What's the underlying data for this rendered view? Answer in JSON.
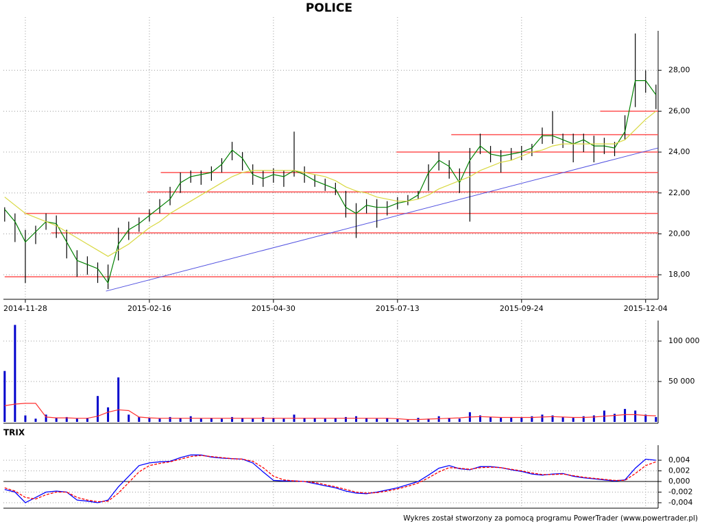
{
  "chart_data": [
    {
      "type": "stock",
      "title": "POLICE",
      "categories": [
        null,
        null,
        "2014-11-28",
        null,
        null,
        null,
        null,
        null,
        null,
        null,
        null,
        null,
        null,
        null,
        "2015-02-16",
        null,
        null,
        null,
        null,
        null,
        null,
        null,
        null,
        null,
        null,
        null,
        "2015-04-30",
        null,
        null,
        null,
        null,
        null,
        null,
        null,
        null,
        null,
        null,
        null,
        "2015-07-13",
        null,
        null,
        null,
        null,
        null,
        null,
        null,
        null,
        null,
        null,
        null,
        "2015-09-24",
        null,
        null,
        null,
        null,
        null,
        null,
        null,
        null,
        null,
        null,
        null,
        "2015-12-04",
        null
      ],
      "high": [
        21.3,
        21.0,
        20.2,
        20.4,
        21.0,
        20.9,
        20.2,
        19.2,
        18.9,
        18.6,
        18.5,
        20.3,
        20.6,
        20.8,
        21.2,
        21.7,
        22.3,
        23.0,
        23.1,
        23.1,
        23.3,
        23.7,
        24.5,
        24.0,
        23.4,
        23.1,
        23.2,
        23.1,
        25.0,
        23.3,
        22.9,
        22.7,
        22.5,
        22.1,
        21.5,
        21.7,
        21.7,
        21.6,
        21.8,
        21.9,
        22.1,
        23.4,
        24.0,
        23.6,
        23.2,
        24.2,
        24.9,
        24.3,
        24.1,
        24.2,
        24.3,
        24.4,
        25.2,
        26.0,
        24.9,
        24.9,
        24.9,
        24.8,
        24.7,
        24.5,
        25.8,
        29.8,
        28.0,
        27.3
      ],
      "low": [
        20.6,
        19.6,
        17.6,
        19.5,
        20.2,
        19.8,
        18.8,
        17.9,
        18.0,
        17.6,
        17.3,
        18.7,
        19.7,
        20.1,
        20.6,
        21.0,
        21.4,
        22.0,
        22.5,
        22.4,
        22.6,
        23.0,
        23.6,
        23.1,
        22.4,
        22.3,
        22.5,
        22.3,
        22.8,
        22.5,
        22.3,
        22.1,
        21.9,
        20.8,
        19.8,
        21.0,
        20.3,
        20.9,
        21.2,
        21.4,
        21.7,
        22.1,
        23.1,
        22.7,
        22.0,
        20.6,
        23.9,
        23.5,
        23.0,
        23.6,
        23.6,
        23.8,
        24.4,
        24.4,
        24.2,
        23.5,
        24.0,
        23.5,
        23.9,
        23.8,
        24.6,
        26.2,
        26.9,
        26.1
      ],
      "series": [
        {
          "color": "#008000",
          "values": [
            21.2,
            20.6,
            19.6,
            20.1,
            20.6,
            20.5,
            19.6,
            18.7,
            18.5,
            18.3,
            17.6,
            19.5,
            20.2,
            20.5,
            20.9,
            21.3,
            21.7,
            22.5,
            22.8,
            22.9,
            23.0,
            23.4,
            24.1,
            23.7,
            22.9,
            22.7,
            22.9,
            22.8,
            23.1,
            22.9,
            22.6,
            22.4,
            22.2,
            21.3,
            21.0,
            21.4,
            21.3,
            21.3,
            21.5,
            21.6,
            21.9,
            23.0,
            23.6,
            23.3,
            22.5,
            23.6,
            24.3,
            23.9,
            23.8,
            23.9,
            24.0,
            24.2,
            24.8,
            24.8,
            24.6,
            24.4,
            24.6,
            24.3,
            24.3,
            24.2,
            25.0,
            27.5,
            27.5,
            26.8
          ]
        },
        {
          "color": "#d8d840",
          "values": [
            21.8,
            21.4,
            21.0,
            20.8,
            20.6,
            20.4,
            20.1,
            19.8,
            19.5,
            19.2,
            18.9,
            19.2,
            19.5,
            19.9,
            20.3,
            20.6,
            21.0,
            21.3,
            21.6,
            21.9,
            22.2,
            22.5,
            22.8,
            23.0,
            23.1,
            23.1,
            23.1,
            23.1,
            23.1,
            23.0,
            22.9,
            22.8,
            22.6,
            22.3,
            22.1,
            22.0,
            21.8,
            21.7,
            21.6,
            21.6,
            21.7,
            21.9,
            22.2,
            22.4,
            22.6,
            22.8,
            23.1,
            23.3,
            23.5,
            23.6,
            23.8,
            24.0,
            24.1,
            24.3,
            24.4,
            24.4,
            24.4,
            24.4,
            24.4,
            24.4,
            24.6,
            25.1,
            25.6,
            26.0
          ]
        }
      ],
      "hlines": {
        "color": "#ff5050",
        "levels": [
          {
            "value": 17.9,
            "from": 0
          },
          {
            "value": 20.05,
            "from": 4.5
          },
          {
            "value": 21.0,
            "from": 1.9
          },
          {
            "value": 22.05,
            "from": 13.8
          },
          {
            "value": 23.0,
            "from": 15.1
          },
          {
            "value": 24.0,
            "from": 37.9
          },
          {
            "value": 24.85,
            "from": 43.2
          },
          {
            "value": 26.0,
            "from": 57.6
          }
        ]
      },
      "trendline": {
        "color": "#5050e0",
        "from": [
          9.8,
          17.2
        ],
        "to": [
          63.2,
          24.2
        ]
      },
      "ylim": [
        16.8,
        30.6
      ],
      "yticks": [
        {
          "value": 18,
          "label": "18,00"
        },
        {
          "value": 20,
          "label": "20,00"
        },
        {
          "value": 22,
          "label": "22,00"
        },
        {
          "value": 24,
          "label": "24,00"
        },
        {
          "value": 26,
          "label": "26,00"
        },
        {
          "value": 28,
          "label": "28,00"
        }
      ],
      "grid": true
    },
    {
      "type": "bar",
      "values": [
        63000,
        120000,
        8000,
        4000,
        9000,
        5000,
        6000,
        4000,
        5000,
        32000,
        18000,
        55000,
        9000,
        6000,
        5000,
        4000,
        6000,
        5000,
        7000,
        4000,
        5000,
        4000,
        6000,
        5000,
        4000,
        6000,
        5000,
        4000,
        9000,
        5000,
        5000,
        4000,
        5000,
        6000,
        7000,
        5000,
        4000,
        5000,
        4000,
        3000,
        5000,
        4000,
        7000,
        5000,
        4000,
        12000,
        8000,
        6000,
        5000,
        6000,
        6000,
        7000,
        9000,
        8000,
        6000,
        5000,
        7000,
        8000,
        14000,
        10000,
        16000,
        14000,
        9000,
        6000
      ],
      "color": "#0000cc",
      "series": [
        {
          "color": "#ff3030",
          "values": [
            20000,
            22000,
            23000,
            23000,
            6000,
            5000,
            5000,
            4500,
            4500,
            7000,
            12000,
            15000,
            14000,
            6000,
            5000,
            4500,
            4500,
            4500,
            4500,
            4500,
            4500,
            4500,
            4500,
            4500,
            4500,
            4500,
            4500,
            4500,
            4500,
            4500,
            4500,
            4500,
            4500,
            4500,
            4500,
            4500,
            4500,
            4500,
            4000,
            3000,
            3000,
            3500,
            4000,
            4500,
            5000,
            6000,
            6500,
            6000,
            5500,
            5500,
            5500,
            5500,
            6000,
            6500,
            6000,
            5500,
            5500,
            6000,
            7000,
            8000,
            9000,
            9000,
            8000,
            7500
          ]
        }
      ],
      "ylim": [
        0,
        125000
      ],
      "yticks": [
        {
          "value": 50000,
          "label": "50 000"
        },
        {
          "value": 100000,
          "label": "100 000"
        }
      ],
      "grid": true
    },
    {
      "type": "line",
      "title": "TRIX",
      "series": [
        {
          "color": "#0000ff",
          "values": [
            -0.0015,
            -0.002,
            -0.004,
            -0.003,
            -0.002,
            -0.0018,
            -0.002,
            -0.0035,
            -0.0037,
            -0.004,
            -0.0035,
            -0.001,
            0.001,
            0.003,
            0.0035,
            0.0037,
            0.0038,
            0.0045,
            0.005,
            0.005,
            0.0046,
            0.0044,
            0.0043,
            0.0042,
            0.0035,
            0.0018,
            0.0002,
            0.0001,
            0.0001,
            0.0,
            -0.0004,
            -0.0008,
            -0.0012,
            -0.0018,
            -0.0022,
            -0.0023,
            -0.002,
            -0.0016,
            -0.0012,
            -0.0006,
            0.0,
            0.0012,
            0.0025,
            0.003,
            0.0024,
            0.0022,
            0.0028,
            0.0028,
            0.0026,
            0.0022,
            0.0019,
            0.0014,
            0.0012,
            0.0014,
            0.0015,
            0.001,
            0.0007,
            0.0005,
            0.0003,
            0.0001,
            0.0003,
            0.0025,
            0.0042,
            0.004
          ]
        },
        {
          "color": "#ff0000",
          "dashed": true,
          "values": [
            -0.0012,
            -0.0018,
            -0.003,
            -0.0033,
            -0.0025,
            -0.002,
            -0.002,
            -0.003,
            -0.0035,
            -0.0038,
            -0.0037,
            -0.0022,
            -0.0002,
            0.0018,
            0.003,
            0.0034,
            0.0037,
            0.0042,
            0.0047,
            0.0049,
            0.0047,
            0.0045,
            0.0043,
            0.0042,
            0.0038,
            0.0026,
            0.001,
            0.0003,
            0.0001,
            0.0,
            -0.0002,
            -0.0006,
            -0.001,
            -0.0015,
            -0.002,
            -0.0022,
            -0.0021,
            -0.0018,
            -0.0014,
            -0.0009,
            -0.0003,
            0.0007,
            0.0018,
            0.0026,
            0.0025,
            0.0023,
            0.0026,
            0.0027,
            0.0026,
            0.0023,
            0.002,
            0.0016,
            0.0013,
            0.0013,
            0.0014,
            0.0011,
            0.0008,
            0.0006,
            0.0004,
            0.0002,
            0.0002,
            0.0015,
            0.003,
            0.0037
          ]
        }
      ],
      "ylim": [
        -0.005,
        0.0068
      ],
      "yticks": [
        {
          "value": -0.004,
          "label": "-0,004"
        },
        {
          "value": -0.002,
          "label": "-0,002"
        },
        {
          "value": 0,
          "label": "0,000"
        },
        {
          "value": 0.002,
          "label": "0,002"
        },
        {
          "value": 0.004,
          "label": "0,004"
        }
      ],
      "grid": true
    }
  ],
  "footer": "Wykres został stworzony za pomocą programu PowerTrader (www.powertrader.pl)"
}
